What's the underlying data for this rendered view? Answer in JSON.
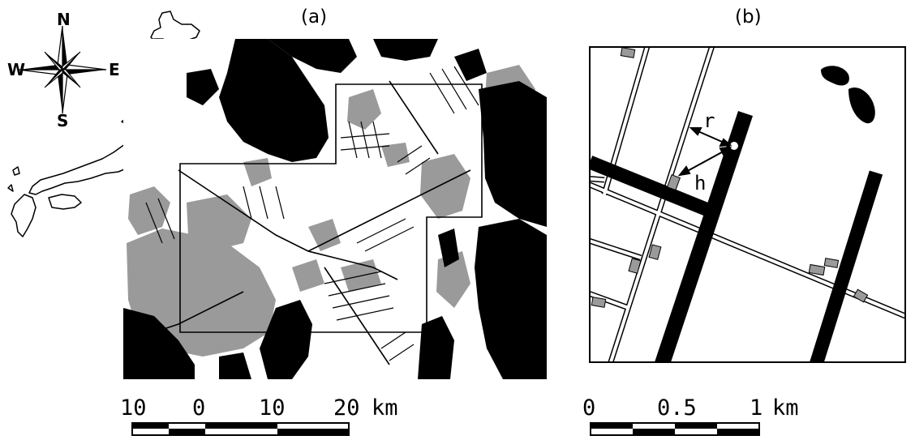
{
  "panel_a": {
    "title": "(a)"
  },
  "panel_b": {
    "title": "(b)",
    "label_r": "r",
    "label_h": "h"
  },
  "compass": {
    "north": "N",
    "south": "S",
    "east": "E",
    "west": "W"
  },
  "scale_a": {
    "ticks": [
      "10",
      "0",
      "10",
      "20"
    ],
    "unit": "km"
  },
  "scale_b": {
    "ticks": [
      "0",
      "0.5",
      "1"
    ],
    "unit": "km"
  },
  "colors": {
    "forest": "#000000",
    "urban": "#9a9a9a",
    "background": "#ffffff"
  }
}
